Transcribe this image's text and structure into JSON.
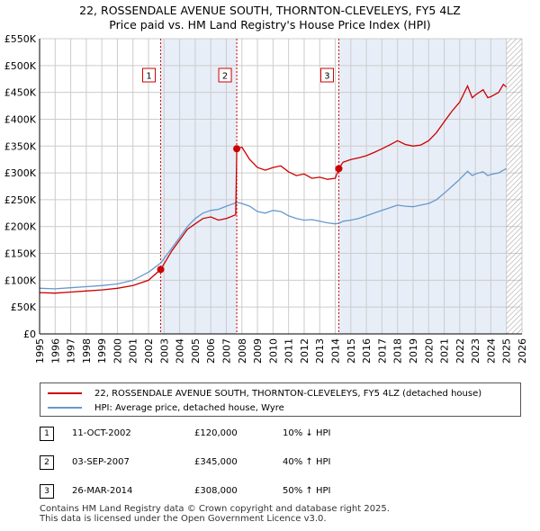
{
  "title": {
    "line1": "22, ROSSENDALE AVENUE SOUTH, THORNTON-CLEVELEYS, FY5 4LZ",
    "line2": "Price paid vs. HM Land Registry's House Price Index (HPI)"
  },
  "colors": {
    "property": "#cc0000",
    "hpi": "#6699cc",
    "shade": "#e8eef8",
    "grid": "#cccccc"
  },
  "legend": {
    "property_label": "22, ROSSENDALE AVENUE SOUTH, THORNTON-CLEVELEYS, FY5 4LZ (detached house)",
    "hpi_label": "HPI: Average price, detached house, Wyre"
  },
  "sales": [
    {
      "num": "1",
      "date": "11-OCT-2002",
      "price": "£120,000",
      "hpi_change": "10% ↓ HPI"
    },
    {
      "num": "2",
      "date": "03-SEP-2007",
      "price": "£345,000",
      "hpi_change": "40% ↑ HPI"
    },
    {
      "num": "3",
      "date": "26-MAR-2014",
      "price": "£308,000",
      "hpi_change": "50% ↑ HPI"
    }
  ],
  "footer": {
    "line1": "Contains HM Land Registry data © Crown copyright and database right 2025.",
    "line2": "This data is licensed under the Open Government Licence v3.0."
  },
  "chart_data": {
    "type": "line",
    "title": "22, ROSSENDALE AVENUE SOUTH, THORNTON-CLEVELEYS, FY5 4LZ",
    "subtitle": "Price paid vs. HM Land Registry's House Price Index (HPI)",
    "xlabel": "",
    "ylabel": "",
    "xlim": [
      1995,
      2026
    ],
    "ylim": [
      0,
      550000
    ],
    "x_ticks": [
      1995,
      1996,
      1997,
      1998,
      1999,
      2000,
      2001,
      2002,
      2003,
      2004,
      2005,
      2006,
      2007,
      2008,
      2009,
      2010,
      2011,
      2012,
      2013,
      2014,
      2015,
      2016,
      2017,
      2018,
      2019,
      2020,
      2021,
      2022,
      2023,
      2024,
      2025,
      2026
    ],
    "y_ticks": [
      {
        "value": 0,
        "label": "£0"
      },
      {
        "value": 50000,
        "label": "£50K"
      },
      {
        "value": 100000,
        "label": "£100K"
      },
      {
        "value": 150000,
        "label": "£150K"
      },
      {
        "value": 200000,
        "label": "£200K"
      },
      {
        "value": 250000,
        "label": "£250K"
      },
      {
        "value": 300000,
        "label": "£300K"
      },
      {
        "value": 350000,
        "label": "£350K"
      },
      {
        "value": 400000,
        "label": "£400K"
      },
      {
        "value": 450000,
        "label": "£450K"
      },
      {
        "value": 500000,
        "label": "£500K"
      },
      {
        "value": 550000,
        "label": "£550K"
      }
    ],
    "grid": true,
    "shaded_ranges": [
      [
        2002.78,
        2007.67
      ],
      [
        2014.23,
        2025.0
      ]
    ],
    "hatched_range": [
      2025.0,
      2026
    ],
    "sale_markers": [
      {
        "label": "1",
        "x": 2002.78,
        "y": 120000
      },
      {
        "label": "2",
        "x": 2007.67,
        "y": 345000
      },
      {
        "label": "3",
        "x": 2014.23,
        "y": 308000
      }
    ],
    "series": [
      {
        "name": "22, ROSSENDALE AVENUE SOUTH, THORNTON-CLEVELEYS, FY5 4LZ (detached house)",
        "color": "#cc0000",
        "points": [
          [
            1995.0,
            77000
          ],
          [
            1996.0,
            76000
          ],
          [
            1997.0,
            78000
          ],
          [
            1998.0,
            80000
          ],
          [
            1999.0,
            82000
          ],
          [
            2000.0,
            85000
          ],
          [
            2001.0,
            90000
          ],
          [
            2002.0,
            100000
          ],
          [
            2002.78,
            120000
          ],
          [
            2003.5,
            155000
          ],
          [
            2004.5,
            195000
          ],
          [
            2005.0,
            205000
          ],
          [
            2005.5,
            215000
          ],
          [
            2006.0,
            218000
          ],
          [
            2006.5,
            212000
          ],
          [
            2007.0,
            215000
          ],
          [
            2007.6,
            222000
          ],
          [
            2007.67,
            345000
          ],
          [
            2008.0,
            348000
          ],
          [
            2008.5,
            325000
          ],
          [
            2009.0,
            310000
          ],
          [
            2009.5,
            305000
          ],
          [
            2010.0,
            310000
          ],
          [
            2010.5,
            313000
          ],
          [
            2011.0,
            302000
          ],
          [
            2011.5,
            295000
          ],
          [
            2012.0,
            298000
          ],
          [
            2012.5,
            290000
          ],
          [
            2013.0,
            292000
          ],
          [
            2013.5,
            288000
          ],
          [
            2014.0,
            290000
          ],
          [
            2014.23,
            308000
          ],
          [
            2014.5,
            320000
          ],
          [
            2015.0,
            325000
          ],
          [
            2015.5,
            328000
          ],
          [
            2016.0,
            332000
          ],
          [
            2016.5,
            338000
          ],
          [
            2017.0,
            345000
          ],
          [
            2017.5,
            352000
          ],
          [
            2018.0,
            360000
          ],
          [
            2018.5,
            353000
          ],
          [
            2019.0,
            350000
          ],
          [
            2019.5,
            352000
          ],
          [
            2020.0,
            360000
          ],
          [
            2020.5,
            375000
          ],
          [
            2021.0,
            395000
          ],
          [
            2021.5,
            415000
          ],
          [
            2022.0,
            432000
          ],
          [
            2022.5,
            462000
          ],
          [
            2022.8,
            440000
          ],
          [
            2023.0,
            445000
          ],
          [
            2023.5,
            455000
          ],
          [
            2023.8,
            440000
          ],
          [
            2024.0,
            442000
          ],
          [
            2024.5,
            450000
          ],
          [
            2024.8,
            465000
          ],
          [
            2025.0,
            460000
          ]
        ]
      },
      {
        "name": "HPI: Average price, detached house, Wyre",
        "color": "#6699cc",
        "points": [
          [
            1995.0,
            85000
          ],
          [
            1996.0,
            84000
          ],
          [
            1997.0,
            86000
          ],
          [
            1998.0,
            88000
          ],
          [
            1999.0,
            90000
          ],
          [
            2000.0,
            93000
          ],
          [
            2001.0,
            100000
          ],
          [
            2002.0,
            115000
          ],
          [
            2002.78,
            132000
          ],
          [
            2003.5,
            160000
          ],
          [
            2004.0,
            180000
          ],
          [
            2004.5,
            200000
          ],
          [
            2005.0,
            215000
          ],
          [
            2005.5,
            225000
          ],
          [
            2006.0,
            230000
          ],
          [
            2006.5,
            232000
          ],
          [
            2007.0,
            238000
          ],
          [
            2007.67,
            245000
          ],
          [
            2008.0,
            243000
          ],
          [
            2008.5,
            238000
          ],
          [
            2009.0,
            228000
          ],
          [
            2009.5,
            225000
          ],
          [
            2010.0,
            230000
          ],
          [
            2010.5,
            228000
          ],
          [
            2011.0,
            220000
          ],
          [
            2011.5,
            215000
          ],
          [
            2012.0,
            212000
          ],
          [
            2012.5,
            213000
          ],
          [
            2013.0,
            210000
          ],
          [
            2013.5,
            207000
          ],
          [
            2014.0,
            205000
          ],
          [
            2014.23,
            206000
          ],
          [
            2014.5,
            210000
          ],
          [
            2015.0,
            212000
          ],
          [
            2015.5,
            215000
          ],
          [
            2016.0,
            220000
          ],
          [
            2016.5,
            225000
          ],
          [
            2017.0,
            230000
          ],
          [
            2017.5,
            235000
          ],
          [
            2018.0,
            240000
          ],
          [
            2018.5,
            238000
          ],
          [
            2019.0,
            237000
          ],
          [
            2019.5,
            240000
          ],
          [
            2020.0,
            243000
          ],
          [
            2020.5,
            250000
          ],
          [
            2021.0,
            262000
          ],
          [
            2021.5,
            275000
          ],
          [
            2022.0,
            288000
          ],
          [
            2022.5,
            303000
          ],
          [
            2022.8,
            295000
          ],
          [
            2023.0,
            298000
          ],
          [
            2023.5,
            302000
          ],
          [
            2023.8,
            295000
          ],
          [
            2024.0,
            297000
          ],
          [
            2024.5,
            300000
          ],
          [
            2024.8,
            305000
          ],
          [
            2025.0,
            308000
          ]
        ]
      }
    ]
  }
}
